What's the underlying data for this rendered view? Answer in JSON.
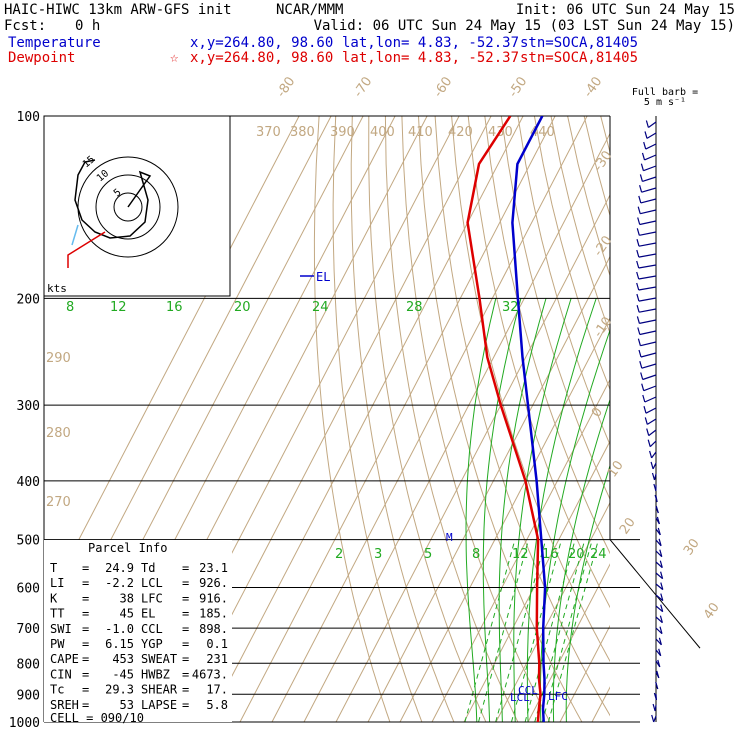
{
  "header": {
    "model": "HAIC-HIWC 13km ARW-GFS init",
    "org": "NCAR/MMM",
    "init": "Init: 06 UTC Sun 24 May 15",
    "fcst_label": "Fcst:",
    "fcst_value": "0 h",
    "valid": "Valid: 06 UTC Sun 24 May 15 (03 LST Sun 24 May 15)"
  },
  "legend": {
    "temperature": {
      "name": "Temperature",
      "xy": "x,y=264.80, 98.60",
      "latlon": "lat,lon=  4.83, -52.37",
      "stn": "stn=SOCA,81405",
      "color": "#0000cc"
    },
    "dewpoint": {
      "name": "Dewpoint",
      "marker": "☆",
      "xy": "x,y=264.80, 98.60",
      "latlon": "lat,lon=  4.83, -52.37",
      "stn": "stn=SOCA,81405",
      "color": "#dd0000"
    }
  },
  "barb_title": {
    "line1": "Full barb =",
    "line2": "5 m s⁻¹"
  },
  "hodograph": {
    "unit": "kts",
    "rings": [
      "5",
      "10",
      "15"
    ]
  },
  "parcel_info": {
    "title": "Parcel Info",
    "rows": [
      [
        "T",
        "24.9",
        "Td",
        "23.1"
      ],
      [
        "LI",
        "-2.2",
        "LCL",
        "926."
      ],
      [
        "K",
        "38",
        "LFC",
        "916."
      ],
      [
        "TT",
        "45",
        "EL",
        "185."
      ],
      [
        "SWI",
        "-1.0",
        "CCL",
        "898."
      ],
      [
        "PW",
        "6.15",
        "YGP",
        "0.1"
      ],
      [
        "CAPE",
        "453",
        "SWEAT",
        "231"
      ],
      [
        "CIN",
        "-45",
        "HWBZ",
        "4673."
      ],
      [
        "Tc",
        "29.3",
        "SHEAR",
        "17."
      ],
      [
        "SREH",
        "53",
        "LAPSE",
        "5.8"
      ]
    ],
    "cell": "CELL = 090/10"
  },
  "levels": {
    "el": "EL",
    "ccl": "CCL",
    "lcl": "LCL",
    "lfc": "LFC",
    "m": "M"
  },
  "chart_data": {
    "type": "line",
    "pressure_levels": [
      100,
      200,
      300,
      400,
      500,
      600,
      700,
      800,
      900,
      1000
    ],
    "isotherm_labels": [
      "-80",
      "-70",
      "-60",
      "-50",
      "-40",
      "-30",
      "-20",
      "-10",
      "0",
      "10",
      "20",
      "30",
      "40"
    ],
    "theta_labels": [
      "370",
      "380",
      "390",
      "400",
      "410",
      "420",
      "430",
      "440",
      "290",
      "280",
      "270"
    ],
    "mixing_ratio_upper": [
      "8",
      "12",
      "16",
      "20",
      "24",
      "28",
      "32"
    ],
    "mixing_ratio_lower": [
      "2",
      "3",
      "5",
      "8",
      "12",
      "16",
      "20",
      "24"
    ],
    "series": [
      {
        "name": "Temperature",
        "color": "#0000cc",
        "points": [
          [
            1000,
            24.9
          ],
          [
            950,
            22.5
          ],
          [
            900,
            20.6
          ],
          [
            850,
            18.2
          ],
          [
            800,
            15.3
          ],
          [
            700,
            9.5
          ],
          [
            600,
            3.5
          ],
          [
            500,
            -5.5
          ],
          [
            400,
            -16.5
          ],
          [
            300,
            -31.5
          ],
          [
            250,
            -41
          ],
          [
            200,
            -52
          ],
          [
            150,
            -66
          ],
          [
            120,
            -74
          ],
          [
            100,
            -74
          ]
        ]
      },
      {
        "name": "Dewpoint",
        "color": "#dd0000",
        "points": [
          [
            1000,
            23.1
          ],
          [
            950,
            21.2
          ],
          [
            900,
            19.4
          ],
          [
            850,
            16.5
          ],
          [
            800,
            14
          ],
          [
            700,
            7.5
          ],
          [
            600,
            1
          ],
          [
            500,
            -6.5
          ],
          [
            400,
            -20
          ],
          [
            300,
            -40
          ],
          [
            250,
            -52
          ],
          [
            200,
            -64
          ],
          [
            150,
            -80
          ],
          [
            120,
            -86
          ],
          [
            100,
            -84
          ]
        ]
      }
    ],
    "hodograph_trace": [
      [
        0,
        0
      ],
      [
        2,
        3
      ],
      [
        -1,
        7
      ],
      [
        -2,
        10
      ],
      [
        0,
        15
      ],
      [
        6,
        12
      ],
      [
        8,
        6
      ],
      [
        6,
        0
      ],
      [
        3,
        -4
      ],
      [
        -4,
        -2
      ],
      [
        -8,
        4
      ],
      [
        -10,
        12
      ]
    ]
  }
}
